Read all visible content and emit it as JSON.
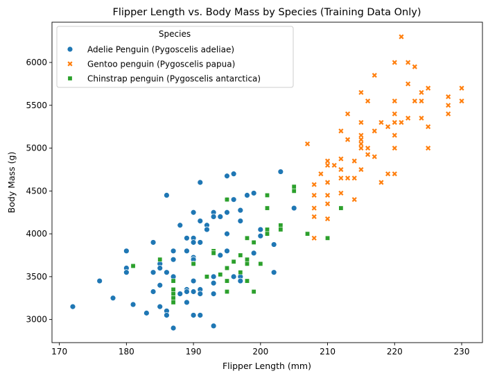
{
  "chart_data": {
    "type": "scatter",
    "title": "Flipper Length vs. Body Mass by Species (Training Data Only)",
    "xlabel": "Flipper Length (mm)",
    "ylabel": "Body Mass (g)",
    "xlim": [
      168.9,
      233.1
    ],
    "ylim": [
      2730,
      6470
    ],
    "xticks": [
      170,
      180,
      190,
      200,
      210,
      220,
      230
    ],
    "yticks": [
      3000,
      3500,
      4000,
      4500,
      5000,
      5500,
      6000
    ],
    "grid": false,
    "legend": {
      "title": "Species",
      "placement": "top-left"
    },
    "series": [
      {
        "name": "Adelie Penguin (Pygoscelis adeliae)",
        "marker": "circle",
        "color": "#1f77b4",
        "points": [
          [
            172,
            3150
          ],
          [
            176,
            3450
          ],
          [
            178,
            3250
          ],
          [
            180,
            3800
          ],
          [
            180,
            3600
          ],
          [
            180,
            3550
          ],
          [
            181,
            3625
          ],
          [
            181,
            3175
          ],
          [
            183,
            3075
          ],
          [
            184,
            3900
          ],
          [
            184,
            3550
          ],
          [
            184,
            3325
          ],
          [
            185,
            3650
          ],
          [
            185,
            3600
          ],
          [
            185,
            3400
          ],
          [
            185,
            3150
          ],
          [
            186,
            4450
          ],
          [
            186,
            3550
          ],
          [
            186,
            3100
          ],
          [
            186,
            3050
          ],
          [
            187,
            3800
          ],
          [
            187,
            3700
          ],
          [
            187,
            3500
          ],
          [
            187,
            3300
          ],
          [
            187,
            2900
          ],
          [
            188,
            4100
          ],
          [
            188,
            3300
          ],
          [
            189,
            3950
          ],
          [
            189,
            3800
          ],
          [
            189,
            3350
          ],
          [
            189,
            3325
          ],
          [
            189,
            3200
          ],
          [
            190,
            4250
          ],
          [
            190,
            3950
          ],
          [
            190,
            3900
          ],
          [
            190,
            3725
          ],
          [
            190,
            3700
          ],
          [
            190,
            3650
          ],
          [
            190,
            3450
          ],
          [
            190,
            3325
          ],
          [
            190,
            3050
          ],
          [
            191,
            4600
          ],
          [
            191,
            4150
          ],
          [
            191,
            3900
          ],
          [
            191,
            3350
          ],
          [
            191,
            3300
          ],
          [
            191,
            3050
          ],
          [
            192,
            4100
          ],
          [
            192,
            4050
          ],
          [
            193,
            4250
          ],
          [
            193,
            4200
          ],
          [
            193,
            3500
          ],
          [
            193,
            3425
          ],
          [
            193,
            3300
          ],
          [
            193,
            2925
          ],
          [
            194,
            4200
          ],
          [
            194,
            3750
          ],
          [
            195,
            4675
          ],
          [
            195,
            4400
          ],
          [
            195,
            4250
          ],
          [
            195,
            4000
          ],
          [
            195,
            3800
          ],
          [
            196,
            4700
          ],
          [
            196,
            4400
          ],
          [
            196,
            3500
          ],
          [
            197,
            4275
          ],
          [
            197,
            4150
          ],
          [
            197,
            3500
          ],
          [
            197,
            3450
          ],
          [
            198,
            4450
          ],
          [
            199,
            4475
          ],
          [
            199,
            3775
          ],
          [
            200,
            4050
          ],
          [
            200,
            3975
          ],
          [
            201,
            4000
          ],
          [
            202,
            3875
          ],
          [
            202,
            3550
          ],
          [
            203,
            4725
          ],
          [
            205,
            4300
          ]
        ]
      },
      {
        "name": "Gentoo penguin (Pygoscelis papua)",
        "marker": "x",
        "color": "#ff7f0e",
        "points": [
          [
            207,
            5050
          ],
          [
            208,
            4575
          ],
          [
            208,
            4450
          ],
          [
            208,
            4300
          ],
          [
            208,
            4200
          ],
          [
            208,
            3950
          ],
          [
            209,
            4700
          ],
          [
            210,
            4850
          ],
          [
            210,
            4800
          ],
          [
            210,
            4600
          ],
          [
            210,
            4450
          ],
          [
            210,
            4350
          ],
          [
            210,
            4175
          ],
          [
            211,
            4800
          ],
          [
            212,
            5200
          ],
          [
            212,
            4875
          ],
          [
            212,
            4750
          ],
          [
            212,
            4650
          ],
          [
            212,
            4475
          ],
          [
            213,
            5400
          ],
          [
            213,
            5100
          ],
          [
            213,
            4650
          ],
          [
            214,
            4850
          ],
          [
            214,
            4650
          ],
          [
            214,
            4400
          ],
          [
            215,
            5650
          ],
          [
            215,
            5300
          ],
          [
            215,
            5150
          ],
          [
            215,
            5100
          ],
          [
            215,
            5050
          ],
          [
            215,
            5000
          ],
          [
            215,
            4750
          ],
          [
            216,
            5550
          ],
          [
            216,
            5000
          ],
          [
            216,
            4925
          ],
          [
            217,
            5850
          ],
          [
            217,
            5200
          ],
          [
            217,
            4900
          ],
          [
            218,
            5300
          ],
          [
            218,
            4600
          ],
          [
            219,
            5250
          ],
          [
            219,
            4700
          ],
          [
            220,
            6000
          ],
          [
            220,
            5550
          ],
          [
            220,
            5400
          ],
          [
            220,
            5300
          ],
          [
            220,
            5150
          ],
          [
            220,
            5000
          ],
          [
            220,
            4700
          ],
          [
            221,
            6300
          ],
          [
            221,
            5300
          ],
          [
            222,
            6000
          ],
          [
            222,
            5750
          ],
          [
            222,
            5350
          ],
          [
            223,
            5950
          ],
          [
            223,
            5550
          ],
          [
            224,
            5650
          ],
          [
            224,
            5550
          ],
          [
            224,
            5350
          ],
          [
            225,
            5700
          ],
          [
            225,
            5250
          ],
          [
            225,
            5000
          ],
          [
            228,
            5600
          ],
          [
            228,
            5500
          ],
          [
            228,
            5400
          ],
          [
            230,
            5700
          ],
          [
            230,
            5550
          ]
        ]
      },
      {
        "name": "Chinstrap penguin (Pygoscelis antarctica)",
        "marker": "square",
        "color": "#2ca02c",
        "points": [
          [
            181,
            3625
          ],
          [
            185,
            3700
          ],
          [
            187,
            3450
          ],
          [
            187,
            3350
          ],
          [
            187,
            3300
          ],
          [
            187,
            3250
          ],
          [
            187,
            3200
          ],
          [
            190,
            3650
          ],
          [
            192,
            3500
          ],
          [
            193,
            3800
          ],
          [
            193,
            3775
          ],
          [
            194,
            3525
          ],
          [
            195,
            4400
          ],
          [
            195,
            3600
          ],
          [
            195,
            3450
          ],
          [
            195,
            3325
          ],
          [
            196,
            3675
          ],
          [
            197,
            3750
          ],
          [
            197,
            3550
          ],
          [
            198,
            3950
          ],
          [
            198,
            3700
          ],
          [
            198,
            3650
          ],
          [
            198,
            3450
          ],
          [
            199,
            3900
          ],
          [
            199,
            3325
          ],
          [
            200,
            3650
          ],
          [
            201,
            4450
          ],
          [
            201,
            4300
          ],
          [
            201,
            4050
          ],
          [
            201,
            4000
          ],
          [
            203,
            4100
          ],
          [
            203,
            4050
          ],
          [
            205,
            4550
          ],
          [
            205,
            4500
          ],
          [
            207,
            4000
          ],
          [
            210,
            3950
          ],
          [
            212,
            4300
          ]
        ]
      }
    ]
  }
}
